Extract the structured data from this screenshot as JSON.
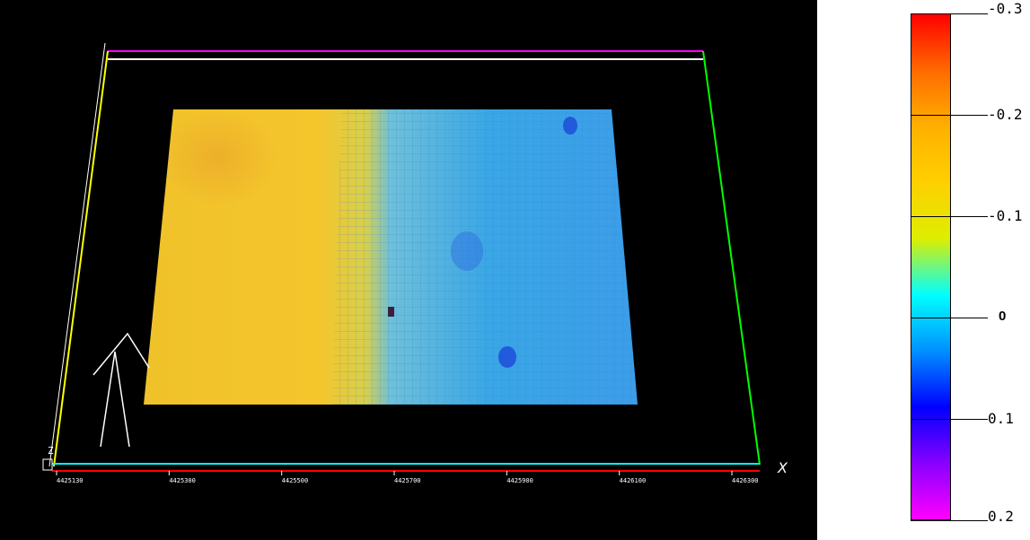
{
  "viewport": {
    "axis_name": "X",
    "x_ticks": [
      "4425130",
      "4425300",
      "4425500",
      "4425700",
      "4425900",
      "4426100",
      "4426300"
    ],
    "z_label": "Z",
    "colors": {
      "background": "#000000",
      "box_top_back": "#ff00ff",
      "box_top_front": "#ffffff",
      "box_left": "#ffff00",
      "box_right": "#00ff00",
      "box_bottom_back": "#00ffff",
      "box_bottom_front": "#ff0000",
      "arrow": "#ffffff"
    }
  },
  "surface": {
    "colormap": "red-orange-yellow-cyan-blue-magenta",
    "dominant_left": "#f2c72a",
    "dominant_right": "#3aa8e8"
  },
  "legend": {
    "ticks": [
      {
        "label": "-0.3",
        "value": -0.3
      },
      {
        "label": "-0.2",
        "value": -0.2
      },
      {
        "label": "-0.1",
        "value": -0.1
      },
      {
        "label": "0",
        "value": 0
      },
      {
        "label": "0.1",
        "value": 0.1
      },
      {
        "label": "0.2",
        "value": 0.2
      }
    ],
    "gradient_stops": [
      "#ff0000",
      "#ff6a00",
      "#ffb000",
      "#ffd000",
      "#ddee00",
      "#00ffff",
      "#0090ff",
      "#0000ff",
      "#8800ff",
      "#ff00ff"
    ]
  }
}
